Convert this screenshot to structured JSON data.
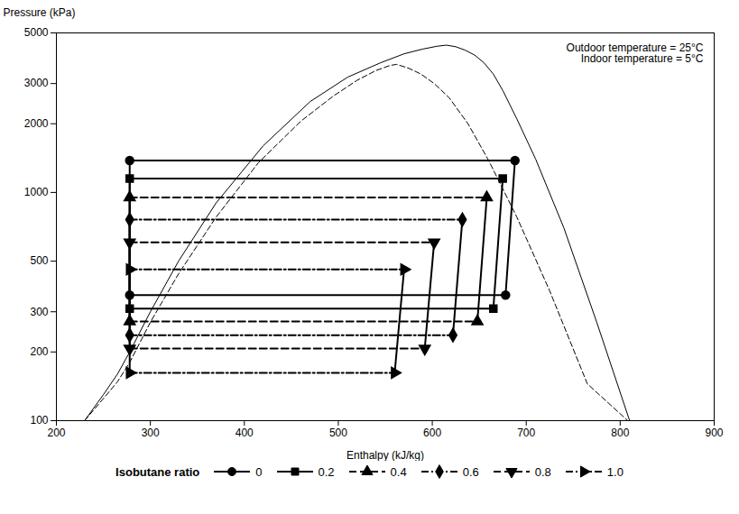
{
  "chart_data": {
    "type": "line",
    "xlabel": "Enthalpy (kJ/kg)",
    "ylabel": "Pressure (kPa)",
    "annotation": "Outdoor temperature = 25°C\nIndoor temperature = 5°C",
    "log": "y",
    "grid": false,
    "legend": "bottom",
    "legend_title": "Isobutane ratio",
    "xlim": [
      200,
      900
    ],
    "ylim": [
      100,
      5000
    ],
    "xticks": [
      200,
      300,
      400,
      500,
      600,
      700,
      800,
      900
    ],
    "yticks": [
      100,
      200,
      300,
      500,
      1000,
      2000,
      3000,
      5000
    ],
    "series": [
      {
        "type": "line",
        "color": "#000000",
        "line_style": "solid",
        "x": [
          230,
          250,
          265,
          278,
          300,
          330,
          370,
          420,
          470,
          510,
          545,
          570,
          590,
          605,
          615,
          615,
          625,
          635,
          645,
          655,
          665,
          675,
          690,
          710,
          740,
          775,
          810
        ],
        "y": [
          100,
          130,
          160,
          200,
          300,
          500,
          900,
          1600,
          2500,
          3200,
          3700,
          4050,
          4250,
          4370,
          4420,
          4420,
          4350,
          4200,
          4000,
          3700,
          3300,
          2800,
          2100,
          1400,
          700,
          270,
          100
        ]
      },
      {
        "type": "line",
        "color": "#000000",
        "line_style": "dashed",
        "x": [
          230,
          250,
          265,
          278,
          300,
          330,
          370,
          415,
          460,
          495,
          520,
          540,
          555,
          562,
          562,
          575,
          588,
          602,
          618,
          638,
          660,
          690,
          725,
          765,
          808
        ],
        "y": [
          100,
          125,
          148,
          180,
          270,
          440,
          780,
          1350,
          2050,
          2650,
          3100,
          3420,
          3600,
          3640,
          3640,
          3500,
          3300,
          3000,
          2600,
          2000,
          1380,
          780,
          370,
          145,
          100
        ]
      },
      {
        "type": "cycle",
        "name": "0",
        "color": "#000000",
        "line_style": "solid",
        "marker": "circle",
        "h_left": 278,
        "h_right": 678,
        "h_right_top": 688,
        "p_high": 1380,
        "p_low": 355
      },
      {
        "type": "cycle",
        "name": "0.2",
        "color": "#000000",
        "line_style": "solid",
        "marker": "square",
        "h_left": 278,
        "h_right": 665,
        "h_right_top": 675,
        "p_high": 1150,
        "p_low": 310
      },
      {
        "type": "cycle",
        "name": "0.4",
        "color": "#000000",
        "line_style": "dashed",
        "marker": "triangle",
        "h_left": 278,
        "h_right": 648,
        "h_right_top": 658,
        "p_high": 950,
        "p_low": 272
      },
      {
        "type": "cycle",
        "name": "0.6",
        "color": "#000000",
        "line_style": "dashdot",
        "marker": "diamond",
        "h_left": 278,
        "h_right": 622,
        "h_right_top": 632,
        "p_high": 760,
        "p_low": 237
      },
      {
        "type": "cycle",
        "name": "0.8",
        "color": "#000000",
        "line_style": "dashed",
        "marker": "triangle_down",
        "h_left": 278,
        "h_right": 592,
        "h_right_top": 602,
        "p_high": 605,
        "p_low": 207
      },
      {
        "type": "cycle",
        "name": "1.0",
        "color": "#000000",
        "line_style": "dashdot",
        "marker": "triangle_right",
        "h_left": 278,
        "h_right": 560,
        "h_right_top": 570,
        "p_high": 460,
        "p_low": 162
      }
    ]
  }
}
